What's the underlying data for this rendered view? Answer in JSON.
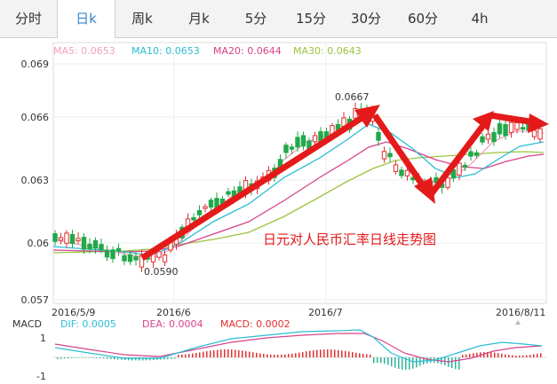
{
  "tabs": [
    "分时",
    "日k",
    "周k",
    "月k",
    "5分",
    "15分",
    "30分",
    "60分",
    "4h"
  ],
  "active_tab": 1,
  "chart_data": [
    {
      "type": "candlestick",
      "title": "日元对人民币汇率日线走势图",
      "ma_legend": [
        {
          "label": "MA5: 0.0653",
          "color": "#f2a0c0"
        },
        {
          "label": "MA10: 0.0653",
          "color": "#2bbcd4"
        },
        {
          "label": "MA20: 0.0644",
          "color": "#d6438b"
        },
        {
          "label": "MA30: 0.0643",
          "color": "#9bc53d"
        }
      ],
      "y_ticks": [
        "0.069",
        "0.066",
        "0.063",
        "0.06",
        "0.057"
      ],
      "ylim": [
        0.057,
        0.069
      ],
      "x_ticks": [
        "2016/5/9",
        "2016/6",
        "2016/7",
        "2016/8/11"
      ],
      "annotations": {
        "high": "0.0667",
        "low": "0.0590"
      },
      "up_color": "#e03030",
      "down_color": "#22a84a"
    },
    {
      "type": "macd",
      "legend": [
        {
          "label": "MACD",
          "color": "#333333"
        },
        {
          "label": "DIF: 0.0005",
          "color": "#2bbcd4"
        },
        {
          "label": "DEA: 0.0004",
          "color": "#d6438b"
        },
        {
          "label": "MACD: 0.0002",
          "color": "#e03030"
        }
      ],
      "y_ticks": [
        "1",
        "-1"
      ]
    }
  ]
}
